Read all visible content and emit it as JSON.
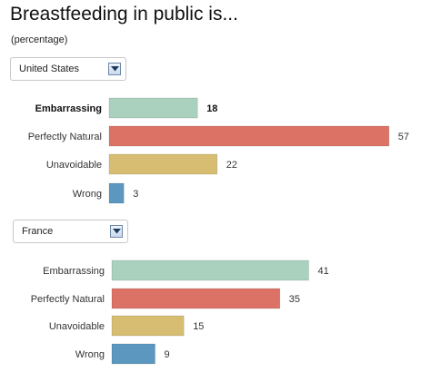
{
  "title": "Breastfeeding in public is...",
  "subtitle": "(percentage)",
  "colors": {
    "Embarrassing": "#a9d1bd",
    "Perfectly Natural": "#dc7266",
    "Unavoidable": "#d7bd71",
    "Wrong": "#5b97bf"
  },
  "selectors": [
    {
      "selected": "United States",
      "icon": "dropdown-arrow-icon"
    },
    {
      "selected": "France",
      "icon": "dropdown-arrow-icon"
    }
  ],
  "chart_data": [
    {
      "type": "bar",
      "orientation": "horizontal",
      "title": "United States",
      "categories": [
        "Embarrassing",
        "Perfectly Natural",
        "Unavoidable",
        "Wrong"
      ],
      "values": [
        18,
        57,
        22,
        3
      ],
      "highlighted": "Embarrassing"
    },
    {
      "type": "bar",
      "orientation": "horizontal",
      "title": "France",
      "categories": [
        "Embarrassing",
        "Perfectly Natural",
        "Unavoidable",
        "Wrong"
      ],
      "values": [
        41,
        35,
        15,
        9
      ]
    }
  ]
}
